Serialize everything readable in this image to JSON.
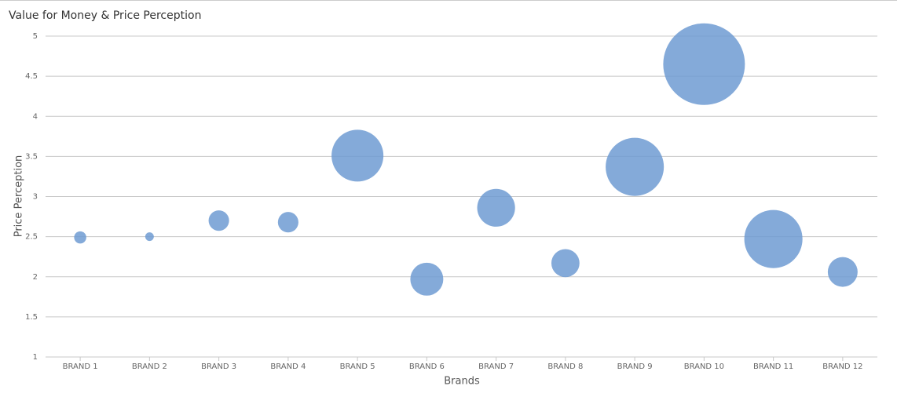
{
  "chart_data": {
    "type": "bubble",
    "title": "Value for Money & Price Perception",
    "x_label": "Brands",
    "y_label": "Price Perception",
    "categories": [
      "BRAND 1",
      "BRAND 2",
      "BRAND 3",
      "BRAND 4",
      "BRAND 5",
      "BRAND 6",
      "BRAND 7",
      "BRAND 8",
      "BRAND 9",
      "BRAND 10",
      "BRAND 11",
      "BRAND 12"
    ],
    "series": [
      {
        "color": "#6f9bd2",
        "values": [
          2.49,
          2.5,
          2.7,
          2.68,
          3.51,
          1.97,
          2.86,
          2.17,
          3.37,
          4.65,
          2.47,
          2.06
        ],
        "sizes": [
          6,
          3,
          17,
          17,
          109,
          44,
          58,
          32,
          137,
          270,
          137,
          36
        ]
      }
    ],
    "ylim": [
      1,
      5
    ],
    "yticks": [
      1,
      1.5,
      2,
      2.5,
      3,
      3.5,
      4,
      4.5,
      5
    ],
    "grid": true
  }
}
